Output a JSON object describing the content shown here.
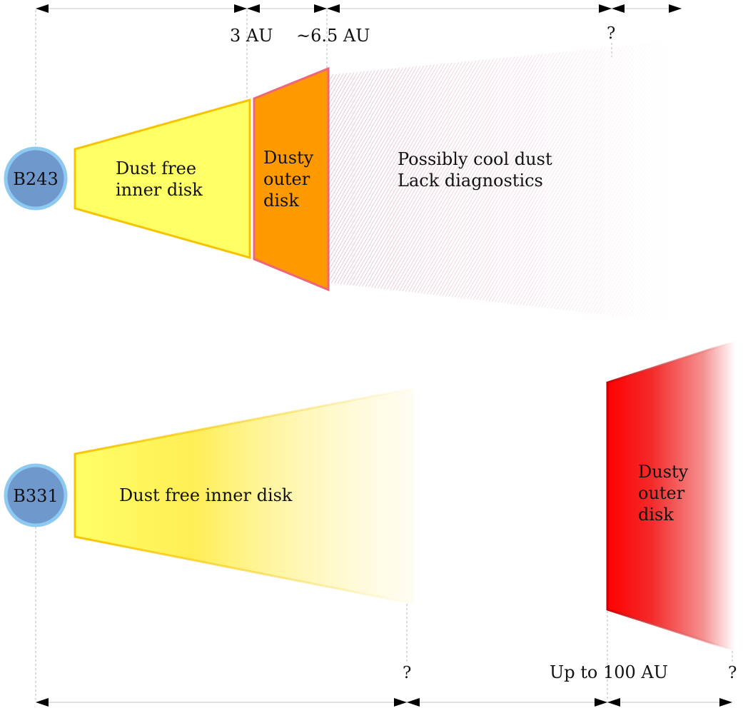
{
  "colors": {
    "star_fill": "#6f98cc",
    "star_ring": "#8dc9f0",
    "inner_disk_yellow": "#ffff66",
    "inner_disk_edge": "#f5c400",
    "dusty_orange": "#ff9900",
    "dusty_orange_edge": "#ee6677",
    "cool_dust_hatch": "#dd99aa",
    "dusty_red": "#ff0000"
  },
  "top": {
    "star_label": "B243",
    "inner_disk_label": [
      "Dust free",
      "inner disk"
    ],
    "outer_disk_label": [
      "Dusty",
      "outer",
      "disk"
    ],
    "cool_dust_label": [
      "Possibly cool dust",
      "Lack diagnostics"
    ],
    "scale_labels": {
      "r1": "3 AU",
      "r2": "~6.5 AU",
      "r3": "?"
    }
  },
  "bottom": {
    "star_label": "B331",
    "inner_disk_label": "Dust free inner disk",
    "outer_disk_label": [
      "Dusty",
      "outer",
      "disk"
    ],
    "scale_labels": {
      "r1": "?",
      "r2": "Up to 100 AU",
      "r3": "?"
    }
  }
}
